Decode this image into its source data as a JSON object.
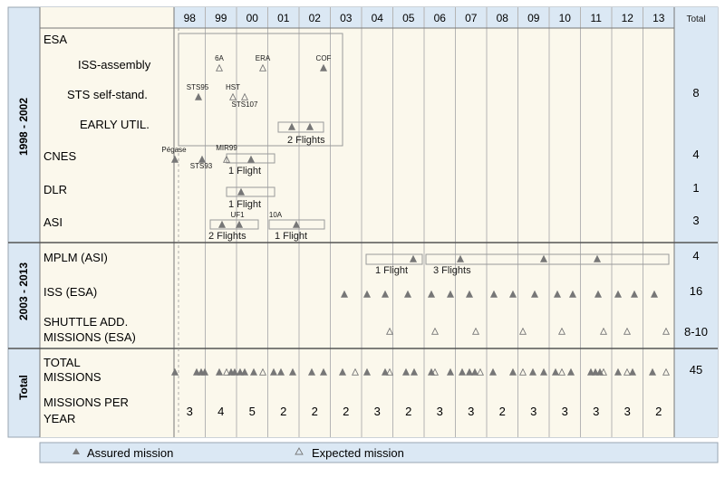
{
  "colors": {
    "panel_blue": "#dbe8f4",
    "grid_bg": "#fbf8ec",
    "line": "#8a8a8a",
    "marker": "#777777",
    "text": "#1a1a1a"
  },
  "header": {
    "years": [
      "98",
      "99",
      "00",
      "01",
      "02",
      "03",
      "04",
      "05",
      "06",
      "07",
      "08",
      "09",
      "10",
      "11",
      "12",
      "13"
    ],
    "total_label": "Total"
  },
  "sections": [
    {
      "label": "1998 - 2002"
    },
    {
      "label": "2003 - 2013"
    },
    {
      "label": "Total"
    }
  ],
  "rows": [
    {
      "label": "ESA",
      "total": ""
    },
    {
      "label": "ISS-assembly",
      "total": ""
    },
    {
      "label": "STS self-stand.",
      "total": "8"
    },
    {
      "label": "EARLY UTIL.",
      "total": ""
    },
    {
      "label": "CNES",
      "total": "4"
    },
    {
      "label": "DLR",
      "total": "1"
    },
    {
      "label": "ASI",
      "total": "3"
    },
    {
      "label": "MPLM (ASI)",
      "total": "4"
    },
    {
      "label": "ISS (ESA)",
      "total": "16"
    },
    {
      "label": "SHUTTLE ADD. MISSIONS (ESA)",
      "total": "8-10"
    },
    {
      "label": "TOTAL MISSIONS",
      "total": "45"
    },
    {
      "label": "MISSIONS PER YEAR",
      "total": ""
    }
  ],
  "annotations": [
    {
      "text": "6A"
    },
    {
      "text": "ERA"
    },
    {
      "text": "COF"
    },
    {
      "text": "STS95"
    },
    {
      "text": "HST"
    },
    {
      "text": "STS107"
    },
    {
      "text": "Pégase"
    },
    {
      "text": "MIR99"
    },
    {
      "text": "STS93"
    },
    {
      "text": "UF1"
    },
    {
      "text": "10A"
    }
  ],
  "flight_labels": [
    {
      "text": "2 Flights"
    },
    {
      "text": "1 Flight"
    },
    {
      "text": "1 Flight"
    },
    {
      "text": "2 Flights"
    },
    {
      "text": "1 Flight"
    },
    {
      "text": "1 Flight"
    },
    {
      "text": "3 Flights"
    }
  ],
  "missions_per_year": [
    "3",
    "4",
    "5",
    "2",
    "2",
    "2",
    "3",
    "2",
    "3",
    "3",
    "2",
    "3",
    "3",
    "3",
    "3",
    "2"
  ],
  "legend": {
    "assured": "Assured mission",
    "expected": "Expected mission",
    "assured_icon": "filled-triangle-icon",
    "expected_icon": "outline-triangle-icon"
  }
}
